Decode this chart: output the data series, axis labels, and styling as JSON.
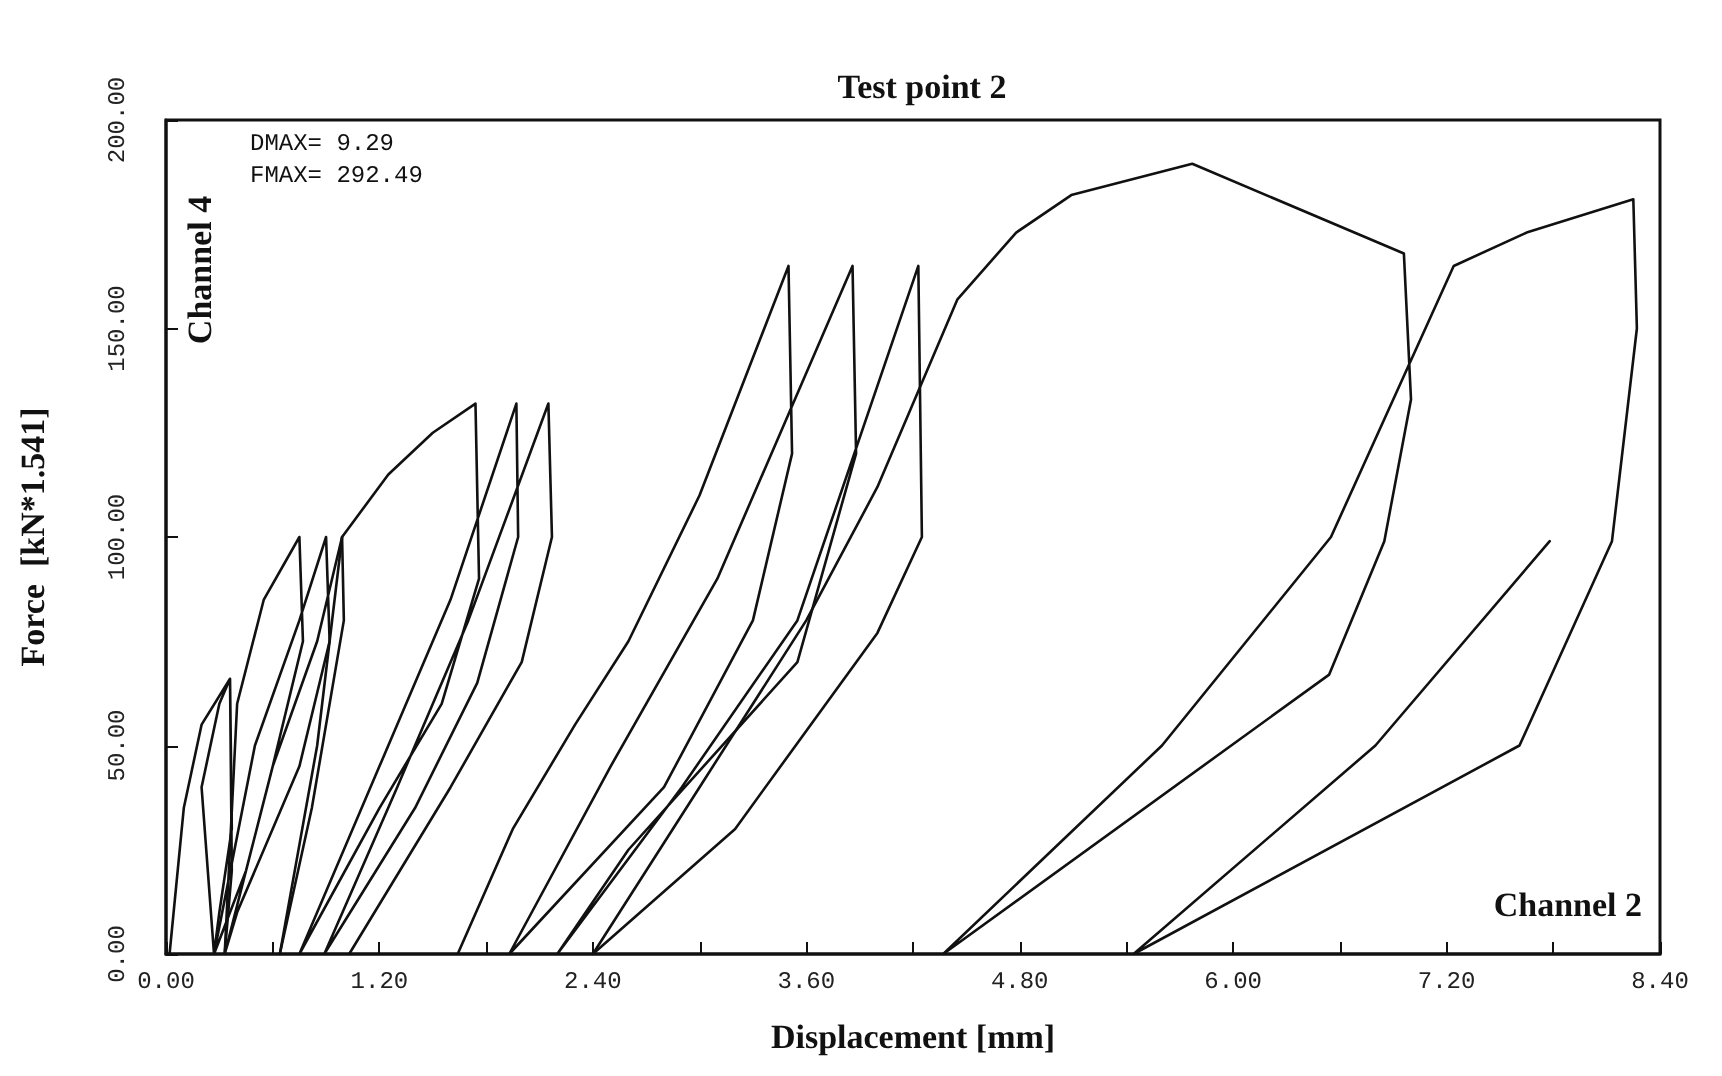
{
  "chart_data": {
    "type": "line",
    "title": "Test point 2",
    "xlabel": "Displacement [mm]",
    "ylabel": "Force  [kN*1.541]",
    "annotations": [
      "Channel 4",
      "DMAX= 9.29",
      "FMAX= 292.49",
      "Channel 2"
    ],
    "xlim": [
      0,
      8.4
    ],
    "ylim": [
      0,
      200
    ],
    "xticks": [
      {
        "value": 0,
        "label": "0.00"
      },
      {
        "value": 0.6,
        "label": null
      },
      {
        "value": 1.2,
        "label": "1.20"
      },
      {
        "value": 1.8,
        "label": null
      },
      {
        "value": 2.4,
        "label": "2.40"
      },
      {
        "value": 3,
        "label": null
      },
      {
        "value": 3.6,
        "label": "3.60"
      },
      {
        "value": 4.2,
        "label": null
      },
      {
        "value": 4.8,
        "label": "4.80"
      },
      {
        "value": 5.4,
        "label": null
      },
      {
        "value": 6,
        "label": "6.00"
      },
      {
        "value": 6.6,
        "label": null
      },
      {
        "value": 7.2,
        "label": "7.20"
      },
      {
        "value": 7.8,
        "label": null
      },
      {
        "value": 8.4,
        "label": "8.40"
      }
    ],
    "yticks": [
      {
        "value": 0,
        "label": "0.00"
      },
      {
        "value": 50,
        "label": "50.00"
      },
      {
        "value": 100,
        "label": "100.00"
      },
      {
        "value": 150,
        "label": "150.00"
      },
      {
        "value": 200,
        "label": "200.00"
      }
    ],
    "grid": false,
    "marker": "none",
    "line_style": "solid",
    "series": [
      {
        "color": "#111111",
        "x": [
          0.02,
          0.1,
          0.2,
          0.36,
          0.37,
          0.3,
          0.27,
          0.2,
          0.3,
          0.36,
          0.37,
          0.33
        ],
        "values": [
          0,
          35,
          55,
          66,
          30,
          10,
          0,
          40,
          60,
          66,
          20,
          0
        ]
      },
      {
        "color": "#111111",
        "x": [
          0.33,
          0.4,
          0.55,
          0.75,
          0.77,
          0.6,
          0.45,
          0.27,
          0.5,
          0.75,
          0.9,
          0.92,
          0.75,
          0.4,
          0.33,
          0.6,
          0.85,
          0.99,
          1.0,
          0.82,
          0.64
        ],
        "values": [
          0,
          60,
          85,
          100,
          75,
          45,
          20,
          0,
          50,
          80,
          100,
          75,
          45,
          10,
          0,
          45,
          75,
          100,
          80,
          35,
          0
        ]
      },
      {
        "color": "#111111",
        "x": [
          0.64,
          0.85,
          0.99,
          1.25,
          1.5,
          1.74,
          1.76,
          1.55,
          1.2,
          0.75,
          1.2,
          1.6,
          1.97,
          1.98,
          1.75,
          1.4,
          0.89,
          1.3,
          1.7,
          2.15,
          2.17,
          2.0,
          1.6,
          1.03
        ],
        "values": [
          0,
          50,
          100,
          115,
          125,
          132,
          90,
          60,
          35,
          0,
          45,
          85,
          132,
          100,
          65,
          35,
          0,
          40,
          80,
          132,
          100,
          70,
          40,
          0
        ]
      },
      {
        "color": "#111111",
        "x": [
          1.64,
          1.95,
          2.3,
          2.6,
          3.0,
          3.5,
          3.52,
          3.3,
          2.8,
          1.93,
          2.5,
          3.1,
          3.86,
          3.88,
          3.55,
          2.6,
          2.2,
          2.9,
          3.55,
          4.23,
          4.25,
          4.0,
          3.2,
          2.4
        ],
        "values": [
          0,
          30,
          55,
          75,
          110,
          165,
          120,
          80,
          40,
          0,
          45,
          90,
          165,
          120,
          70,
          25,
          0,
          40,
          80,
          165,
          100,
          77,
          30,
          0
        ]
      },
      {
        "color": "#111111",
        "x": [
          2.4,
          3.0,
          3.6,
          4.0,
          4.45,
          4.78,
          5.09,
          5.77,
          6.96,
          7.0,
          6.85,
          6.54,
          4.37,
          5.6,
          6.55,
          7.24,
          7.65,
          8.25,
          8.27,
          8.13,
          7.61,
          5.44,
          6.8,
          7.78
        ],
        "values": [
          0,
          40,
          80,
          112,
          157,
          173,
          182,
          189.5,
          168,
          133,
          99,
          67,
          0,
          50,
          100,
          165,
          173,
          181,
          150,
          99,
          50,
          0,
          50,
          99
        ]
      }
    ]
  }
}
